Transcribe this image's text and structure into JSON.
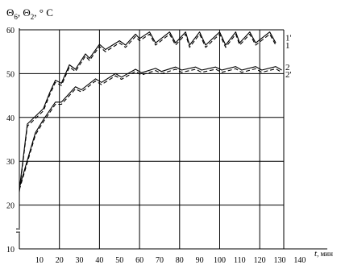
{
  "chart_data": {
    "type": "line",
    "ylabel_parts": [
      "Θ",
      "6",
      ", Θ",
      "2",
      ", ° C"
    ],
    "xlabel_parts": [
      "t",
      ", мин"
    ],
    "xlim": [
      0,
      140
    ],
    "ylim": [
      10,
      60
    ],
    "x_ticks": [
      10,
      20,
      30,
      40,
      50,
      60,
      70,
      80,
      90,
      100,
      110,
      120,
      130,
      140
    ],
    "x_tick_labels": [
      "10",
      "20",
      "30",
      "40",
      "50",
      "60",
      "70",
      "80",
      "90",
      "100",
      "110",
      "120",
      "130",
      "140"
    ],
    "y_ticks": [
      10,
      20,
      30,
      40,
      50,
      60
    ],
    "y_tick_labels": [
      "10",
      "20",
      "30",
      "40",
      "50",
      "60"
    ],
    "grid": true,
    "axis_break": true,
    "series": [
      {
        "name": "1'",
        "dash": "solid",
        "x": [
          0,
          4,
          12,
          15,
          18,
          21,
          25,
          28,
          33,
          35,
          40,
          43,
          50,
          53,
          58,
          60,
          65,
          68,
          75,
          78,
          83,
          85,
          90,
          93,
          100,
          103,
          108,
          110,
          115,
          118,
          125,
          128
        ],
        "y": [
          23.5,
          38.5,
          42,
          45.5,
          48.5,
          47.8,
          52,
          51,
          54.5,
          53.5,
          56.7,
          55.5,
          57.5,
          56.5,
          59,
          58,
          59.5,
          57,
          59.5,
          57,
          59.5,
          56.5,
          59.5,
          56.5,
          59.5,
          56.5,
          59.5,
          57,
          59.5,
          57,
          59.5,
          57
        ]
      },
      {
        "name": "1",
        "dash": "dashed",
        "x": [
          0,
          4,
          12,
          15,
          18,
          21,
          25,
          28,
          33,
          35,
          40,
          43,
          50,
          53,
          58,
          60,
          65,
          68,
          75,
          78,
          83,
          85,
          90,
          93,
          100,
          103,
          108,
          110,
          115,
          118,
          125,
          128
        ],
        "y": [
          23,
          38,
          41.5,
          45,
          48,
          47.3,
          51.5,
          50.5,
          54,
          53,
          56.2,
          55,
          57,
          56,
          58.5,
          57.5,
          59,
          56.5,
          59,
          56.5,
          59,
          56,
          59,
          56,
          59,
          56,
          59,
          56.5,
          59,
          56.5,
          59,
          56.5
        ]
      },
      {
        "name": "2",
        "dash": "solid",
        "x": [
          0,
          8,
          12,
          18,
          21,
          28,
          31,
          38,
          41,
          48,
          51,
          58,
          61,
          68,
          71,
          78,
          81,
          88,
          91,
          98,
          101,
          108,
          111,
          118,
          121,
          128,
          131
        ],
        "y": [
          24,
          36.5,
          39.5,
          43.5,
          43.5,
          47,
          46.3,
          48.8,
          48,
          50,
          49.2,
          51,
          50.2,
          51.2,
          50.5,
          51.5,
          50.8,
          51.5,
          50.8,
          51.5,
          50.8,
          51.6,
          50.8,
          51.6,
          50.8,
          51.6,
          50.8
        ]
      },
      {
        "name": "2'",
        "dash": "dashed",
        "x": [
          0,
          8,
          12,
          18,
          21,
          28,
          31,
          38,
          41,
          48,
          51,
          58,
          61,
          68,
          71,
          78,
          81,
          88,
          91,
          98,
          101,
          108,
          111,
          118,
          121,
          128,
          131
        ],
        "y": [
          23.5,
          36,
          39,
          43,
          43,
          46.5,
          45.8,
          48.3,
          47.5,
          49.5,
          48.7,
          50.5,
          49.7,
          50.7,
          50,
          51,
          50.3,
          51,
          50.3,
          51,
          50.3,
          51.1,
          50.3,
          51.1,
          50.3,
          51.1,
          50.3
        ]
      }
    ]
  }
}
